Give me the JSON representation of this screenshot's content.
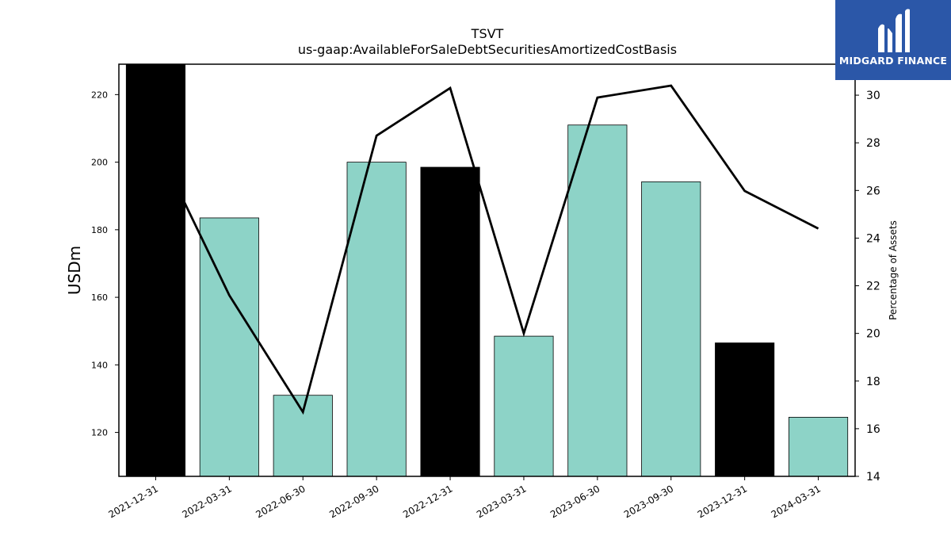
{
  "chart_data": {
    "type": "bar",
    "title": "TSVT",
    "subtitle": "us-gaap:AvailableForSaleDebtSecuritiesAmortizedCostBasis",
    "ylabel": "USDm",
    "y2label": "Percentage of Assets",
    "categories": [
      "2021-12-31",
      "2022-03-31",
      "2022-06-30",
      "2022-09-30",
      "2022-12-31",
      "2023-03-31",
      "2023-06-30",
      "2023-09-30",
      "2023-12-31",
      "2024-03-31"
    ],
    "series": [
      {
        "type": "bar",
        "values": [
          229,
          183.5,
          131,
          200,
          198.5,
          148.5,
          211,
          194.2,
          146.5,
          124.5
        ],
        "colors": [
          "#000000",
          "#8dd3c7",
          "#8dd3c7",
          "#8dd3c7",
          "#000000",
          "#8dd3c7",
          "#8dd3c7",
          "#8dd3c7",
          "#000000",
          "#8dd3c7"
        ]
      },
      {
        "type": "line",
        "axis": "right",
        "values": [
          28.0,
          21.6,
          16.7,
          28.3,
          30.3,
          20.0,
          29.9,
          30.4,
          25.98,
          24.4
        ],
        "color": "#000000"
      }
    ],
    "ylim": [
      107,
      229
    ],
    "y2lim": [
      14,
      31.3
    ],
    "yticks": [
      120,
      140,
      160,
      180,
      200,
      220
    ],
    "y2ticks": [
      14,
      16,
      18,
      20,
      22,
      24,
      26,
      28,
      30
    ],
    "grid": false,
    "legend": "none"
  },
  "logo": {
    "text": "MIDGARD FINANCE",
    "background": "#2b57a8"
  }
}
